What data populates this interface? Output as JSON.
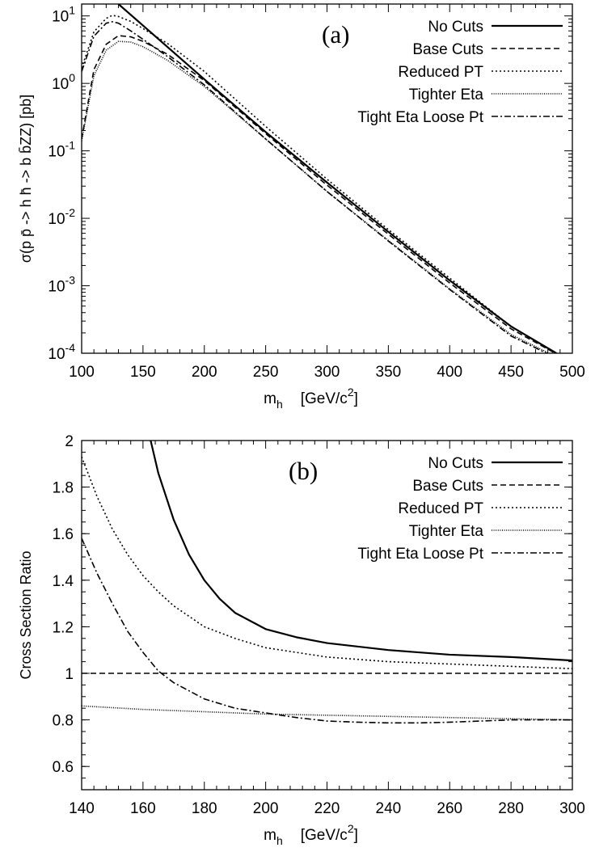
{
  "chart_data": [
    {
      "type": "line",
      "panel_label": "(a)",
      "xlabel": "m",
      "xlabel_sub": "h",
      "xlabel_units": "[GeV/c",
      "xlabel_units_sup": "2",
      "xlabel_units_close": "]",
      "ylabel": "σ(p p̄ -> h h̄ -> b b̄ZZ)    [pb]",
      "xlim": [
        100,
        500
      ],
      "ylim": [
        0.0001,
        15
      ],
      "yscale": "log",
      "grid": false,
      "legend_position": "top-right",
      "x_ticks": [
        100,
        150,
        200,
        250,
        300,
        350,
        400,
        450,
        500
      ],
      "y_ticks": [
        {
          "value": 0.0001,
          "base": "10",
          "exp": "-4"
        },
        {
          "value": 0.001,
          "base": "10",
          "exp": "-3"
        },
        {
          "value": 0.01,
          "base": "10",
          "exp": "-2"
        },
        {
          "value": 0.1,
          "base": "10",
          "exp": "-1"
        },
        {
          "value": 1,
          "base": "10",
          "exp": "0"
        },
        {
          "value": 10,
          "base": "10",
          "exp": "1"
        }
      ],
      "series": [
        {
          "name": "No Cuts",
          "dash": "solid",
          "x": [
            130,
            150,
            200,
            250,
            300,
            350,
            400,
            450,
            487
          ],
          "y": [
            15,
            7.2,
            1.15,
            0.19,
            0.034,
            0.0063,
            0.0012,
            0.00025,
            0.0001
          ]
        },
        {
          "name": "Base Cuts",
          "dash": "dash",
          "x": [
            100,
            110,
            120,
            130,
            140,
            150,
            170,
            200,
            250,
            300,
            350,
            400,
            450,
            486
          ],
          "y": [
            0.15,
            1.6,
            3.8,
            5.1,
            4.9,
            4.2,
            2.7,
            1.1,
            0.18,
            0.031,
            0.0058,
            0.0011,
            0.00023,
            0.0001
          ]
        },
        {
          "name": "Reduced PT",
          "dash": "dot",
          "x": [
            100,
            110,
            120,
            125,
            130,
            140,
            150,
            170,
            200,
            250,
            300,
            350,
            400,
            450,
            486
          ],
          "y": [
            1.7,
            5.8,
            9.2,
            10.2,
            9.8,
            8.3,
            6.5,
            3.9,
            1.5,
            0.23,
            0.038,
            0.0068,
            0.0013,
            0.00025,
            0.0001
          ]
        },
        {
          "name": "Tighter Eta",
          "dash": "fine-dot",
          "x": [
            100,
            110,
            120,
            130,
            140,
            150,
            170,
            200,
            250,
            300,
            350,
            400,
            450,
            481
          ],
          "y": [
            0.14,
            1.3,
            3.1,
            4.2,
            4.1,
            3.5,
            2.2,
            0.9,
            0.15,
            0.025,
            0.0047,
            0.0009,
            0.00019,
            0.0001
          ]
        },
        {
          "name": "Tight Eta Loose Pt",
          "dash": "dash-dot",
          "x": [
            100,
            110,
            120,
            125,
            130,
            140,
            150,
            170,
            200,
            250,
            300,
            350,
            400,
            450,
            479
          ],
          "y": [
            1.5,
            5.0,
            7.8,
            8.2,
            7.8,
            6.0,
            4.5,
            2.5,
            0.95,
            0.15,
            0.025,
            0.0046,
            0.00088,
            0.00018,
            0.0001
          ]
        }
      ]
    },
    {
      "type": "line",
      "panel_label": "(b)",
      "xlabel": "m",
      "xlabel_sub": "h",
      "xlabel_units": "[GeV/c",
      "xlabel_units_sup": "2",
      "xlabel_units_close": "]",
      "ylabel": "Cross Section Ratio",
      "xlim": [
        140,
        300
      ],
      "ylim": [
        0.5,
        2
      ],
      "yscale": "linear",
      "grid": false,
      "legend_position": "top-right",
      "x_ticks": [
        140,
        160,
        180,
        200,
        220,
        240,
        260,
        280,
        300
      ],
      "y_ticks": [
        {
          "value": 0.6,
          "label": "0.6"
        },
        {
          "value": 0.8,
          "label": "0.8"
        },
        {
          "value": 1,
          "label": "1"
        },
        {
          "value": 1.2,
          "label": "1.2"
        },
        {
          "value": 1.4,
          "label": "1.4"
        },
        {
          "value": 1.6,
          "label": "1.6"
        },
        {
          "value": 1.8,
          "label": "1.8"
        },
        {
          "value": 2,
          "label": "2"
        }
      ],
      "series": [
        {
          "name": "No Cuts",
          "dash": "solid",
          "x": [
            162.5,
            165,
            170,
            175,
            180,
            185,
            190,
            200,
            210,
            220,
            240,
            260,
            280,
            300
          ],
          "y": [
            2.0,
            1.86,
            1.66,
            1.51,
            1.4,
            1.32,
            1.26,
            1.19,
            1.155,
            1.13,
            1.1,
            1.08,
            1.07,
            1.055
          ]
        },
        {
          "name": "Base Cuts",
          "dash": "dash",
          "x": [
            140,
            300
          ],
          "y": [
            1.0,
            1.0
          ]
        },
        {
          "name": "Reduced PT",
          "dash": "dot",
          "x": [
            140,
            145,
            150,
            155,
            160,
            165,
            170,
            180,
            190,
            200,
            220,
            240,
            260,
            280,
            300
          ],
          "y": [
            1.93,
            1.76,
            1.62,
            1.51,
            1.42,
            1.35,
            1.29,
            1.2,
            1.15,
            1.11,
            1.07,
            1.05,
            1.04,
            1.03,
            1.02
          ]
        },
        {
          "name": "Tighter Eta",
          "dash": "fine-dot",
          "x": [
            140,
            160,
            180,
            200,
            220,
            240,
            260,
            280,
            300
          ],
          "y": [
            0.86,
            0.845,
            0.835,
            0.825,
            0.82,
            0.815,
            0.81,
            0.805,
            0.8
          ]
        },
        {
          "name": "Tight Eta Loose Pt",
          "dash": "dash-dot",
          "x": [
            140,
            145,
            150,
            155,
            160,
            165,
            170,
            180,
            190,
            200,
            210,
            220,
            230,
            240,
            250,
            260,
            270,
            280,
            290,
            300
          ],
          "y": [
            1.58,
            1.43,
            1.3,
            1.18,
            1.09,
            1.01,
            0.96,
            0.89,
            0.85,
            0.83,
            0.81,
            0.795,
            0.79,
            0.787,
            0.787,
            0.79,
            0.795,
            0.8,
            0.8,
            0.8
          ]
        }
      ]
    }
  ]
}
